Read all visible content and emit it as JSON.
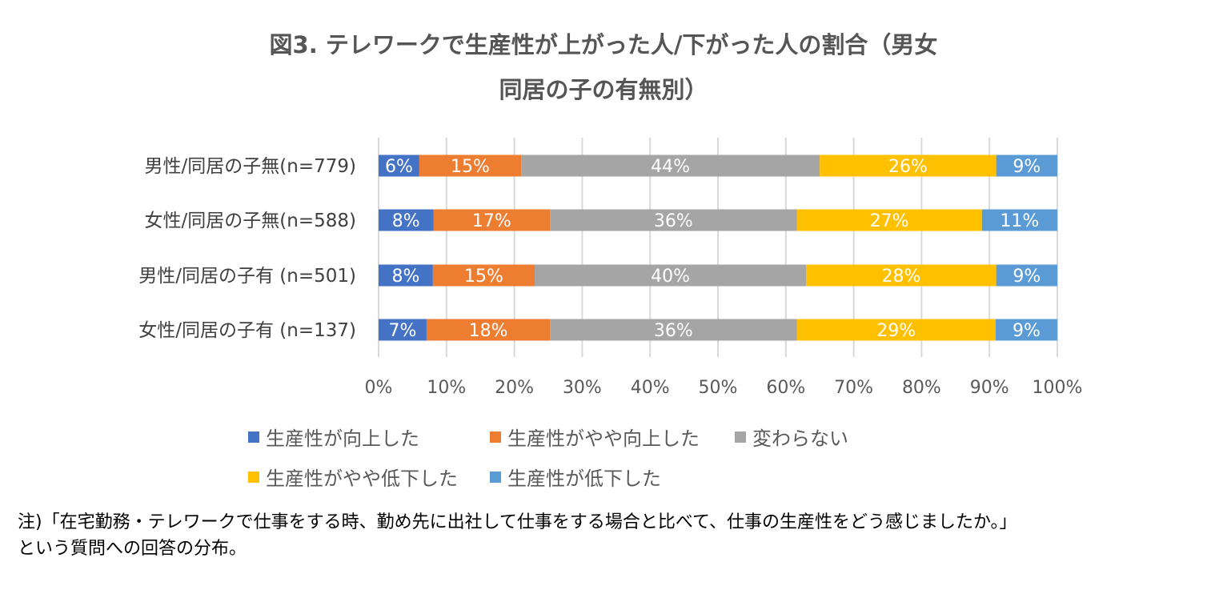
{
  "title_lines": [
    "図3. テレワークで生産性が上がった人/下がった人の割合（男女",
    "同居の子の有無別）"
  ],
  "footnote_lines": [
    "注)「在宅勤務・テレワークで仕事をする時、勤め先に出社して仕事をする場合と比べて、仕事の生産性をどう感じましたか。」",
    "という質問への回答の分布。"
  ],
  "chart_data": {
    "type": "bar",
    "orientation": "horizontal",
    "stacked": "percent",
    "categories": [
      "男性/同居の子無(n=779)",
      "女性/同居の子無(n=588)",
      "男性/同居の子有 (n=501)",
      "女性/同居の子有 (n=137)"
    ],
    "series": [
      {
        "name": "生産性が向上した",
        "color": "#4472C4",
        "values": [
          6,
          8,
          8,
          7
        ]
      },
      {
        "name": "生産性がやや向上した",
        "color": "#ED7D31",
        "values": [
          15,
          17,
          15,
          18
        ]
      },
      {
        "name": "変わらない",
        "color": "#A5A5A5",
        "values": [
          44,
          36,
          40,
          36
        ]
      },
      {
        "name": "生産性がやや低下した",
        "color": "#FFC000",
        "values": [
          26,
          27,
          28,
          29
        ]
      },
      {
        "name": "生産性が低下した",
        "color": "#5B9BD5",
        "values": [
          9,
          11,
          9,
          9
        ]
      }
    ],
    "data_labels": [
      [
        "6%",
        "15%",
        "44%",
        "26%",
        "9%"
      ],
      [
        "8%",
        "17%",
        "36%",
        "27%",
        "11%"
      ],
      [
        "8%",
        "15%",
        "40%",
        "28%",
        "9%"
      ],
      [
        "7%",
        "18%",
        "36%",
        "29%",
        "9%"
      ]
    ],
    "x_ticks": [
      "0%",
      "10%",
      "20%",
      "30%",
      "40%",
      "50%",
      "60%",
      "70%",
      "80%",
      "90%",
      "100%"
    ],
    "xlim": [
      0,
      100
    ],
    "grid": true,
    "legend_position": "bottom"
  }
}
